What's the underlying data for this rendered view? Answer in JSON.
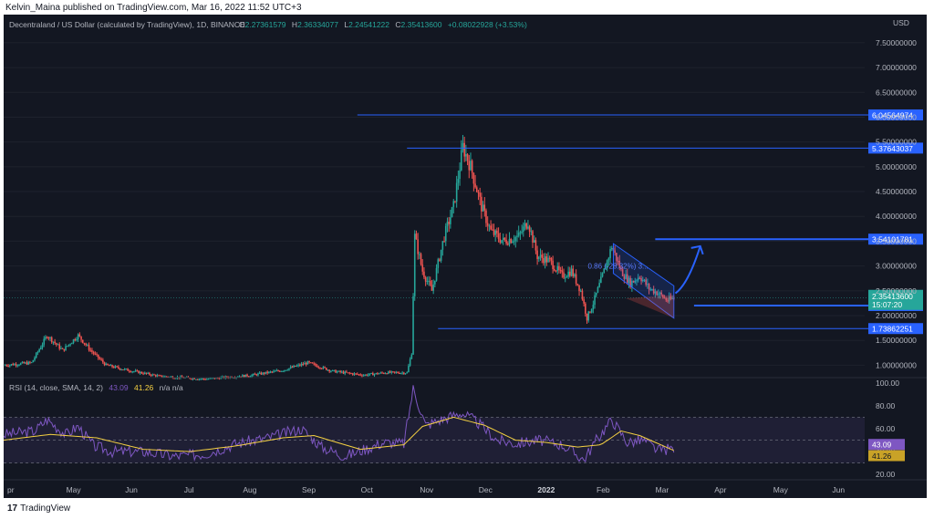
{
  "publisher_text": "Kelvin_Maina published on TradingView.com, Mar 16, 2022 11:52 UTC+3",
  "footer_brand": "TradingView",
  "colors": {
    "background": "#131722",
    "up": "#26a69a",
    "down": "#ef5350",
    "level_line": "#2962ff",
    "rsi_line": "#7e57c2",
    "rsi_sma": "#f5d142",
    "text": "#b2b5be",
    "current_price_bg": "#26a69a",
    "label_bg": "#2962ff"
  },
  "chart_data": [
    {
      "type": "candlestick",
      "title": "Decentraland / US Dollar (calculated by TradingView), 1D, BINANCE",
      "ohlc": {
        "open_label": "O",
        "open": "2.27361579",
        "high_label": "H",
        "high": "2.36334077",
        "low_label": "L",
        "low": "2.24541222",
        "close_label": "C",
        "close": "2.35413600",
        "change": "+0.08022928 (+3.53%)"
      },
      "currency_label": "USD",
      "y_ticks": [
        "7.50000000",
        "7.00000000",
        "6.50000000",
        "6.00000000",
        "5.50000000",
        "5.00000000",
        "4.50000000",
        "4.00000000",
        "3.50000000",
        "3.00000000",
        "2.50000000",
        "2.00000000",
        "1.50000000",
        "1.00000000"
      ],
      "ylim": [
        0.75,
        7.7
      ],
      "x_ticks": [
        "pr",
        "May",
        "Jun",
        "Jul",
        "Aug",
        "Sep",
        "Oct",
        "Nov",
        "Dec",
        "2022",
        "Feb",
        "Mar",
        "Apr",
        "May",
        "Jun"
      ],
      "price_levels": [
        {
          "value": 6.04564974,
          "label": "6.04564974"
        },
        {
          "value": 5.37643037,
          "label": "5.37643037"
        },
        {
          "value": 3.54101781,
          "label": "3.54101781"
        },
        {
          "value": 2.20295872,
          "label": "2.20295872"
        },
        {
          "value": 1.73862251,
          "label": "1.73862251"
        }
      ],
      "current_price": {
        "value": 2.354136,
        "label": "2.35413600",
        "countdown": "15:07:20"
      },
      "channel_annotation": "0.86 (-28.32%) 3...",
      "price_path": [
        {
          "day": 0,
          "price": 1.0
        },
        {
          "day": 18,
          "price": 1.05
        },
        {
          "day": 28,
          "price": 1.6
        },
        {
          "day": 38,
          "price": 1.3
        },
        {
          "day": 48,
          "price": 1.6
        },
        {
          "day": 56,
          "price": 1.3
        },
        {
          "day": 66,
          "price": 1.0
        },
        {
          "day": 80,
          "price": 0.9
        },
        {
          "day": 100,
          "price": 0.78
        },
        {
          "day": 130,
          "price": 0.72
        },
        {
          "day": 160,
          "price": 0.8
        },
        {
          "day": 180,
          "price": 0.9
        },
        {
          "day": 196,
          "price": 1.05
        },
        {
          "day": 212,
          "price": 0.88
        },
        {
          "day": 232,
          "price": 0.8
        },
        {
          "day": 246,
          "price": 0.85
        },
        {
          "day": 260,
          "price": 0.85
        },
        {
          "day": 263,
          "price": 1.25
        },
        {
          "day": 265,
          "price": 3.6
        },
        {
          "day": 270,
          "price": 2.9
        },
        {
          "day": 276,
          "price": 2.5
        },
        {
          "day": 284,
          "price": 3.6
        },
        {
          "day": 290,
          "price": 4.2
        },
        {
          "day": 296,
          "price": 5.4
        },
        {
          "day": 301,
          "price": 5.0
        },
        {
          "day": 308,
          "price": 4.2
        },
        {
          "day": 314,
          "price": 3.7
        },
        {
          "day": 322,
          "price": 3.5
        },
        {
          "day": 332,
          "price": 3.6
        },
        {
          "day": 338,
          "price": 3.9
        },
        {
          "day": 344,
          "price": 3.2
        },
        {
          "day": 352,
          "price": 3.1
        },
        {
          "day": 360,
          "price": 2.8
        },
        {
          "day": 366,
          "price": 2.9
        },
        {
          "day": 372,
          "price": 2.5
        },
        {
          "day": 376,
          "price": 1.95
        },
        {
          "day": 380,
          "price": 2.25
        },
        {
          "day": 386,
          "price": 2.8
        },
        {
          "day": 392,
          "price": 3.4
        },
        {
          "day": 398,
          "price": 2.9
        },
        {
          "day": 404,
          "price": 2.65
        },
        {
          "day": 410,
          "price": 2.8
        },
        {
          "day": 416,
          "price": 2.55
        },
        {
          "day": 422,
          "price": 2.45
        },
        {
          "day": 428,
          "price": 2.3
        },
        {
          "day": 432,
          "price": 2.35
        }
      ],
      "channel": {
        "upper": [
          {
            "day": 393,
            "price": 3.45
          },
          {
            "day": 432,
            "price": 2.6
          }
        ],
        "lower": [
          {
            "day": 393,
            "price": 2.85
          },
          {
            "day": 432,
            "price": 1.95
          }
        ]
      },
      "projection_arrow": [
        {
          "day": 433,
          "price": 2.45
        },
        {
          "day": 449,
          "price": 3.4
        }
      ]
    },
    {
      "type": "line",
      "title": "RSI (14, close, SMA, 14, 2)",
      "values_text": {
        "rsi": "43.09",
        "sma": "41.26",
        "extra": "n/a n/a"
      },
      "y_ticks": [
        "100.00",
        "80.00",
        "60.00",
        "40.00",
        "20.00"
      ],
      "ylim": [
        17,
        103
      ],
      "bands": {
        "upper": 70,
        "middle": 50,
        "lower": 30
      },
      "current_labels": [
        {
          "value": 43.09,
          "label": "43.09"
        },
        {
          "value": 41.26,
          "label": "41.26"
        }
      ],
      "rsi_path": [
        {
          "day": 0,
          "price": 55
        },
        {
          "day": 20,
          "price": 58
        },
        {
          "day": 28,
          "price": 68
        },
        {
          "day": 40,
          "price": 55
        },
        {
          "day": 48,
          "price": 62
        },
        {
          "day": 58,
          "price": 45
        },
        {
          "day": 70,
          "price": 40
        },
        {
          "day": 90,
          "price": 40
        },
        {
          "day": 110,
          "price": 36
        },
        {
          "day": 130,
          "price": 38
        },
        {
          "day": 150,
          "price": 47
        },
        {
          "day": 170,
          "price": 52
        },
        {
          "day": 192,
          "price": 60
        },
        {
          "day": 205,
          "price": 44
        },
        {
          "day": 220,
          "price": 36
        },
        {
          "day": 245,
          "price": 48
        },
        {
          "day": 258,
          "price": 47
        },
        {
          "day": 264,
          "price": 95
        },
        {
          "day": 272,
          "price": 63
        },
        {
          "day": 280,
          "price": 67
        },
        {
          "day": 295,
          "price": 74
        },
        {
          "day": 305,
          "price": 66
        },
        {
          "day": 318,
          "price": 50
        },
        {
          "day": 330,
          "price": 47
        },
        {
          "day": 345,
          "price": 50
        },
        {
          "day": 360,
          "price": 46
        },
        {
          "day": 374,
          "price": 33
        },
        {
          "day": 382,
          "price": 50
        },
        {
          "day": 392,
          "price": 68
        },
        {
          "day": 402,
          "price": 48
        },
        {
          "day": 412,
          "price": 50
        },
        {
          "day": 422,
          "price": 41
        },
        {
          "day": 432,
          "price": 43
        }
      ],
      "sma_path": [
        {
          "day": 0,
          "price": 50
        },
        {
          "day": 30,
          "price": 55
        },
        {
          "day": 60,
          "price": 52
        },
        {
          "day": 90,
          "price": 42
        },
        {
          "day": 120,
          "price": 40
        },
        {
          "day": 150,
          "price": 45
        },
        {
          "day": 180,
          "price": 52
        },
        {
          "day": 200,
          "price": 54
        },
        {
          "day": 230,
          "price": 42
        },
        {
          "day": 258,
          "price": 46
        },
        {
          "day": 270,
          "price": 62
        },
        {
          "day": 290,
          "price": 70
        },
        {
          "day": 310,
          "price": 63
        },
        {
          "day": 330,
          "price": 50
        },
        {
          "day": 350,
          "price": 48
        },
        {
          "day": 370,
          "price": 44
        },
        {
          "day": 385,
          "price": 46
        },
        {
          "day": 398,
          "price": 58
        },
        {
          "day": 410,
          "price": 54
        },
        {
          "day": 432,
          "price": 41
        }
      ]
    }
  ]
}
